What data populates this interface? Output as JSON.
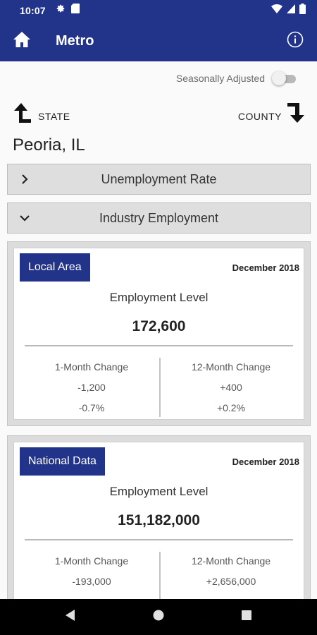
{
  "status_bar": {
    "time": "10:07",
    "icons": [
      "gear-icon",
      "sd-card-icon",
      "wifi-icon",
      "signal-icon",
      "battery-icon"
    ]
  },
  "app_bar": {
    "title": "Metro",
    "home_icon": "home-icon",
    "info_icon": "info-icon"
  },
  "toggle": {
    "label": "Seasonally Adjusted",
    "on": false
  },
  "nav": {
    "state_label": "STATE",
    "county_label": "COUNTY"
  },
  "location": "Peoria, IL",
  "sections": [
    {
      "title": "Unemployment Rate",
      "expanded": false
    },
    {
      "title": "Industry Employment",
      "expanded": true
    }
  ],
  "cards": [
    {
      "badge": "Local Area",
      "date": "December 2018",
      "level_label": "Employment Level",
      "level_value": "172,600",
      "left": {
        "label": "1-Month Change",
        "value": "-1,200",
        "pct": "-0.7%"
      },
      "right": {
        "label": "12-Month Change",
        "value": "+400",
        "pct": "+0.2%"
      }
    },
    {
      "badge": "National Data",
      "date": "December 2018",
      "level_label": "Employment Level",
      "level_value": "151,182,000",
      "left": {
        "label": "1-Month Change",
        "value": "-193,000"
      },
      "right": {
        "label": "12-Month Change",
        "value": "+2,656,000"
      }
    }
  ],
  "colors": {
    "brand": "#22338a",
    "section_bg": "#dedede"
  }
}
